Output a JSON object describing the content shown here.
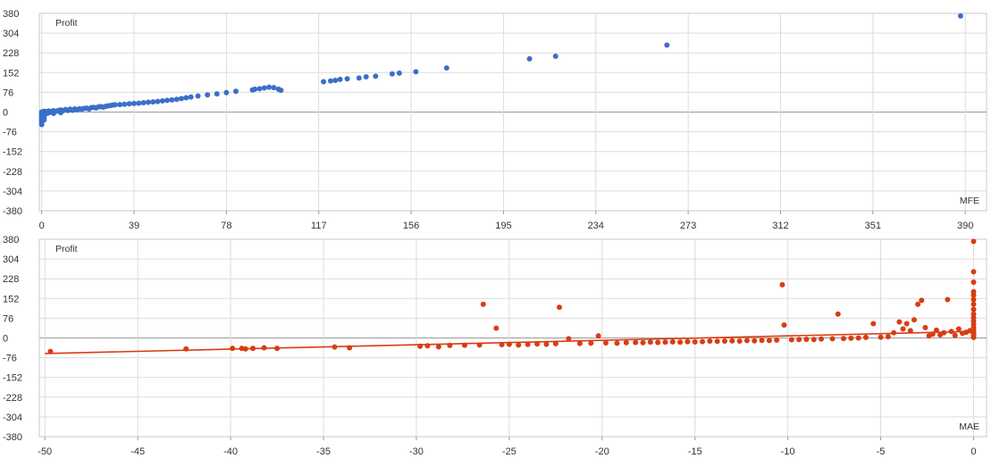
{
  "colors": {
    "background": "#ffffff",
    "grid": "#dcdcdc",
    "zero_line": "#9a9a9a",
    "panel_border": "#c8c8c8",
    "mfe_points": "#3b6fc9",
    "mae_points": "#d93c12",
    "trend_line": "#d93c12"
  },
  "chart_data": [
    {
      "type": "scatter",
      "title": "",
      "ylabel": "Profit",
      "xlabel": "MFE",
      "xlim": [
        -1,
        399
      ],
      "ylim": [
        -380,
        380
      ],
      "x_ticks": [
        "0",
        "39",
        "78",
        "117",
        "156",
        "195",
        "234",
        "273",
        "312",
        "351",
        "390"
      ],
      "y_ticks": [
        "380",
        "304",
        "228",
        "152",
        "76",
        "0",
        "-76",
        "-152",
        "-228",
        "-304",
        "-380"
      ],
      "grid": true,
      "series": [
        {
          "color": "#3b6fc9",
          "points": [
            [
              0,
              -48
            ],
            [
              0,
              -40
            ],
            [
              0,
              -34
            ],
            [
              0,
              -28
            ],
            [
              0,
              -22
            ],
            [
              0,
              -17
            ],
            [
              0,
              -12
            ],
            [
              0,
              -8
            ],
            [
              0,
              -4
            ],
            [
              0,
              0
            ],
            [
              1,
              -30
            ],
            [
              1,
              -20
            ],
            [
              1,
              -10
            ],
            [
              1,
              0
            ],
            [
              1,
              3
            ],
            [
              2,
              -6
            ],
            [
              2,
              2
            ],
            [
              3,
              -3
            ],
            [
              3,
              4
            ],
            [
              4,
              2
            ],
            [
              5,
              -5
            ],
            [
              5,
              5
            ],
            [
              6,
              3
            ],
            [
              7,
              6
            ],
            [
              8,
              -2
            ],
            [
              8,
              8
            ],
            [
              9,
              5
            ],
            [
              10,
              10
            ],
            [
              11,
              6
            ],
            [
              12,
              11
            ],
            [
              13,
              7
            ],
            [
              14,
              12
            ],
            [
              15,
              9
            ],
            [
              16,
              13
            ],
            [
              17,
              11
            ],
            [
              18,
              14
            ],
            [
              19,
              15
            ],
            [
              20,
              12
            ],
            [
              21,
              17
            ],
            [
              22,
              18
            ],
            [
              23,
              16
            ],
            [
              24,
              20
            ],
            [
              25,
              21
            ],
            [
              26,
              19
            ],
            [
              27,
              22
            ],
            [
              28,
              24
            ],
            [
              29,
              25
            ],
            [
              30,
              27
            ],
            [
              31,
              28
            ],
            [
              33,
              29
            ],
            [
              35,
              30
            ],
            [
              37,
              32
            ],
            [
              39,
              33
            ],
            [
              41,
              34
            ],
            [
              43,
              36
            ],
            [
              45,
              38
            ],
            [
              47,
              39
            ],
            [
              49,
              41
            ],
            [
              51,
              43
            ],
            [
              53,
              45
            ],
            [
              55,
              47
            ],
            [
              57,
              49
            ],
            [
              59,
              52
            ],
            [
              61,
              55
            ],
            [
              63,
              58
            ],
            [
              66,
              62
            ],
            [
              70,
              66
            ],
            [
              74,
              70
            ],
            [
              78,
              75
            ],
            [
              82,
              80
            ],
            [
              89,
              85
            ],
            [
              90,
              88
            ],
            [
              92,
              90
            ],
            [
              94,
              93
            ],
            [
              96,
              96
            ],
            [
              98,
              94
            ],
            [
              100,
              88
            ],
            [
              101,
              84
            ],
            [
              119,
              117
            ],
            [
              122,
              120
            ],
            [
              124,
              122
            ],
            [
              126,
              126
            ],
            [
              129,
              128
            ],
            [
              134,
              131
            ],
            [
              137,
              136
            ],
            [
              141,
              138
            ],
            [
              148,
              147
            ],
            [
              151,
              150
            ],
            [
              158,
              155
            ],
            [
              171,
              170
            ],
            [
              206,
              205
            ],
            [
              217,
              215
            ],
            [
              264,
              258
            ],
            [
              388,
              370
            ]
          ]
        }
      ]
    },
    {
      "type": "scatter",
      "title": "",
      "ylabel": "Profit",
      "xlabel": "MAE",
      "xlim": [
        -50.3,
        0.7
      ],
      "ylim": [
        -380,
        380
      ],
      "x_ticks": [
        "-50",
        "-45",
        "-40",
        "-35",
        "-30",
        "-25",
        "-20",
        "-15",
        "-10",
        "-5",
        "0"
      ],
      "y_ticks": [
        "380",
        "304",
        "228",
        "152",
        "76",
        "0",
        "-76",
        "-152",
        "-228",
        "-304",
        "-380"
      ],
      "grid": true,
      "trend_line": {
        "x": [
          -50,
          0
        ],
        "y": [
          -60,
          25
        ]
      },
      "series": [
        {
          "color": "#d93c12",
          "points": [
            [
              -49.7,
              -52
            ],
            [
              -42.4,
              -42
            ],
            [
              -39.9,
              -40
            ],
            [
              -39.4,
              -40
            ],
            [
              -39.2,
              -42
            ],
            [
              -38.8,
              -40
            ],
            [
              -38.2,
              -38
            ],
            [
              -37.5,
              -40
            ],
            [
              -34.4,
              -35
            ],
            [
              -33.6,
              -38
            ],
            [
              -29.8,
              -32
            ],
            [
              -29.4,
              -30
            ],
            [
              -28.8,
              -34
            ],
            [
              -28.2,
              -29
            ],
            [
              -27.4,
              -28
            ],
            [
              -26.6,
              -27
            ],
            [
              -26.4,
              130
            ],
            [
              -25.7,
              38
            ],
            [
              -25.4,
              -26
            ],
            [
              -25.0,
              -24
            ],
            [
              -24.5,
              -27
            ],
            [
              -24.0,
              -25
            ],
            [
              -23.5,
              -23
            ],
            [
              -23.0,
              -24
            ],
            [
              -22.5,
              -22
            ],
            [
              -22.3,
              118
            ],
            [
              -21.8,
              -3
            ],
            [
              -21.2,
              -21
            ],
            [
              -20.6,
              -20
            ],
            [
              -20.2,
              8
            ],
            [
              -19.8,
              -19
            ],
            [
              -19.2,
              -20
            ],
            [
              -18.7,
              -18
            ],
            [
              -18.2,
              -17
            ],
            [
              -17.8,
              -18
            ],
            [
              -17.4,
              -16
            ],
            [
              -17.0,
              -17
            ],
            [
              -16.6,
              -16
            ],
            [
              -16.2,
              -15
            ],
            [
              -15.8,
              -16
            ],
            [
              -15.4,
              -14
            ],
            [
              -15.0,
              -15
            ],
            [
              -14.6,
              -14
            ],
            [
              -14.2,
              -12
            ],
            [
              -13.8,
              -13
            ],
            [
              -13.4,
              -12
            ],
            [
              -13.0,
              -11
            ],
            [
              -12.6,
              -12
            ],
            [
              -12.2,
              -10
            ],
            [
              -11.8,
              -11
            ],
            [
              -11.4,
              -9
            ],
            [
              -11.0,
              -10
            ],
            [
              -10.6,
              -8
            ],
            [
              -10.3,
              205
            ],
            [
              -10.2,
              50
            ],
            [
              -9.8,
              -7
            ],
            [
              -9.4,
              -6
            ],
            [
              -9.0,
              -5
            ],
            [
              -8.6,
              -6
            ],
            [
              -8.2,
              -4
            ],
            [
              -7.6,
              -3
            ],
            [
              -7.3,
              92
            ],
            [
              -7.0,
              -2
            ],
            [
              -6.6,
              -1
            ],
            [
              -6.2,
              0
            ],
            [
              -5.8,
              2
            ],
            [
              -5.4,
              55
            ],
            [
              -5.0,
              3
            ],
            [
              -4.6,
              5
            ],
            [
              -4.3,
              20
            ],
            [
              -4.0,
              62
            ],
            [
              -3.8,
              35
            ],
            [
              -3.6,
              55
            ],
            [
              -3.4,
              28
            ],
            [
              -3.2,
              70
            ],
            [
              -3.0,
              130
            ],
            [
              -2.8,
              145
            ],
            [
              -2.6,
              40
            ],
            [
              -2.4,
              8
            ],
            [
              -2.2,
              15
            ],
            [
              -2.0,
              30
            ],
            [
              -1.8,
              12
            ],
            [
              -1.6,
              20
            ],
            [
              -1.4,
              148
            ],
            [
              -1.2,
              25
            ],
            [
              -1.0,
              10
            ],
            [
              -0.8,
              35
            ],
            [
              -0.6,
              18
            ],
            [
              -0.4,
              22
            ],
            [
              -0.2,
              28
            ],
            [
              0,
              2
            ],
            [
              0,
              8
            ],
            [
              0,
              15
            ],
            [
              0,
              22
            ],
            [
              0,
              30
            ],
            [
              0,
              40
            ],
            [
              0,
              52
            ],
            [
              0,
              65
            ],
            [
              0,
              78
            ],
            [
              0,
              92
            ],
            [
              0,
              110
            ],
            [
              0,
              130
            ],
            [
              0,
              148
            ],
            [
              0,
              165
            ],
            [
              0,
              178
            ],
            [
              0,
              215
            ],
            [
              0,
              255
            ],
            [
              0,
              372
            ]
          ]
        }
      ]
    }
  ]
}
